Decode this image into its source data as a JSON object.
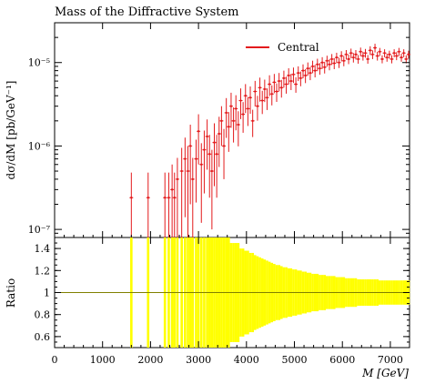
{
  "chart_data": {
    "type": "scatter",
    "title": "Mass of the Diffractive System",
    "xlabel": "M [GeV]",
    "ylabel": "dσ/dM [pb/GeV⁻¹]",
    "ratio_ylabel": "Ratio",
    "x_ticks": [
      "0",
      "1000",
      "2000",
      "3000",
      "4000",
      "5000",
      "6000",
      "7000"
    ],
    "y_ticks_main": [
      "10⁻⁷",
      "10⁻⁶",
      "10⁻⁵"
    ],
    "y_ticks_ratio": [
      "0.6",
      "0.8",
      "1",
      "1.2",
      "1.4"
    ],
    "legend": [
      {
        "name": "Central",
        "color": "#e31a1c"
      }
    ],
    "legend_position": "top-right",
    "xlim": [
      0,
      7400
    ],
    "ylim_main": [
      8e-08,
      3e-05
    ],
    "y_scale_main": "log",
    "ylim_ratio": [
      0.5,
      1.5
    ],
    "series": [
      {
        "name": "Central",
        "color": "#e31a1c",
        "points": [
          [
            1600,
            2.4e-07,
            1.0
          ],
          [
            1950,
            2.4e-07,
            1.0
          ],
          [
            2300,
            2.4e-07,
            1.0
          ],
          [
            2380,
            2.4e-07,
            1.0
          ],
          [
            2450,
            3e-07,
            1.0
          ],
          [
            2500,
            2.4e-07,
            1.0
          ],
          [
            2560,
            4e-07,
            0.8
          ],
          [
            2650,
            5e-07,
            0.9
          ],
          [
            2720,
            7e-07,
            0.8
          ],
          [
            2780,
            5e-07,
            1.0
          ],
          [
            2830,
            1e-06,
            0.8
          ],
          [
            2880,
            4e-07,
            0.8
          ],
          [
            2950,
            7e-07,
            0.7
          ],
          [
            3000,
            1.5e-06,
            0.6
          ],
          [
            3060,
            6e-07,
            0.8
          ],
          [
            3120,
            9e-07,
            0.7
          ],
          [
            3180,
            1.3e-06,
            0.6
          ],
          [
            3230,
            8e-07,
            0.7
          ],
          [
            3280,
            5e-07,
            0.8
          ],
          [
            3330,
            1.1e-06,
            0.7
          ],
          [
            3380,
            8e-07,
            0.7
          ],
          [
            3430,
            1.4e-06,
            0.6
          ],
          [
            3480,
            2e-06,
            0.5
          ],
          [
            3530,
            1e-06,
            0.6
          ],
          [
            3580,
            2.5e-06,
            0.5
          ],
          [
            3630,
            1.7e-06,
            0.5
          ],
          [
            3680,
            3e-06,
            0.45
          ],
          [
            3730,
            2e-06,
            0.45
          ],
          [
            3780,
            2.8e-06,
            0.45
          ],
          [
            3830,
            1.8e-06,
            0.45
          ],
          [
            3880,
            3.5e-06,
            0.4
          ],
          [
            3930,
            2.4e-06,
            0.4
          ],
          [
            3980,
            4e-06,
            0.38
          ],
          [
            4030,
            2.8e-06,
            0.38
          ],
          [
            4080,
            3.8e-06,
            0.36
          ],
          [
            4130,
            2e-06,
            0.36
          ],
          [
            4180,
            4.5e-06,
            0.34
          ],
          [
            4230,
            3e-06,
            0.33
          ],
          [
            4280,
            5e-06,
            0.32
          ],
          [
            4330,
            3.5e-06,
            0.31
          ],
          [
            4380,
            4.8e-06,
            0.3
          ],
          [
            4430,
            3.8e-06,
            0.29
          ],
          [
            4480,
            5.5e-06,
            0.28
          ],
          [
            4530,
            4.2e-06,
            0.27
          ],
          [
            4580,
            5.8e-06,
            0.26
          ],
          [
            4630,
            4.5e-06,
            0.25
          ],
          [
            4680,
            6e-06,
            0.25
          ],
          [
            4730,
            5e-06,
            0.24
          ],
          [
            4780,
            6.5e-06,
            0.23
          ],
          [
            4830,
            5.5e-06,
            0.23
          ],
          [
            4880,
            7e-06,
            0.22
          ],
          [
            4930,
            6e-06,
            0.22
          ],
          [
            4980,
            7.2e-06,
            0.21
          ],
          [
            5030,
            5.5e-06,
            0.21
          ],
          [
            5080,
            7.5e-06,
            0.2
          ],
          [
            5130,
            6.5e-06,
            0.2
          ],
          [
            5180,
            8e-06,
            0.19
          ],
          [
            5230,
            7e-06,
            0.19
          ],
          [
            5280,
            8.5e-06,
            0.18
          ],
          [
            5330,
            7.5e-06,
            0.18
          ],
          [
            5380,
            9e-06,
            0.17
          ],
          [
            5430,
            8e-06,
            0.17
          ],
          [
            5480,
            9.5e-06,
            0.17
          ],
          [
            5530,
            8.5e-06,
            0.16
          ],
          [
            5580,
            1e-05,
            0.16
          ],
          [
            5630,
            8.8e-06,
            0.16
          ],
          [
            5680,
            1.05e-05,
            0.15
          ],
          [
            5730,
            9.5e-06,
            0.15
          ],
          [
            5780,
            1.1e-05,
            0.15
          ],
          [
            5830,
            9.8e-06,
            0.15
          ],
          [
            5880,
            1.15e-05,
            0.14
          ],
          [
            5930,
            1e-05,
            0.14
          ],
          [
            5980,
            1.2e-05,
            0.14
          ],
          [
            6030,
            1.05e-05,
            0.14
          ],
          [
            6080,
            1.25e-05,
            0.13
          ],
          [
            6130,
            1.1e-05,
            0.13
          ],
          [
            6180,
            1.3e-05,
            0.13
          ],
          [
            6230,
            1.15e-05,
            0.13
          ],
          [
            6280,
            1.25e-05,
            0.13
          ],
          [
            6330,
            1.1e-05,
            0.12
          ],
          [
            6380,
            1.35e-05,
            0.12
          ],
          [
            6430,
            1.2e-05,
            0.12
          ],
          [
            6480,
            1.3e-05,
            0.12
          ],
          [
            6530,
            1.1e-05,
            0.12
          ],
          [
            6580,
            1.4e-05,
            0.12
          ],
          [
            6630,
            1.25e-05,
            0.12
          ],
          [
            6680,
            1.5e-05,
            0.12
          ],
          [
            6730,
            1.2e-05,
            0.12
          ],
          [
            6780,
            1.35e-05,
            0.11
          ],
          [
            6830,
            1.1e-05,
            0.11
          ],
          [
            6880,
            1.3e-05,
            0.11
          ],
          [
            6930,
            1.15e-05,
            0.11
          ],
          [
            6980,
            1.25e-05,
            0.11
          ],
          [
            7030,
            1.1e-05,
            0.11
          ],
          [
            7080,
            1.3e-05,
            0.11
          ],
          [
            7130,
            1.2e-05,
            0.11
          ],
          [
            7180,
            1.35e-05,
            0.11
          ],
          [
            7230,
            1.15e-05,
            0.11
          ],
          [
            7280,
            1.3e-05,
            0.11
          ],
          [
            7330,
            1.1e-05,
            0.11
          ],
          [
            7380,
            1.25e-05,
            0.11
          ]
        ]
      }
    ]
  }
}
